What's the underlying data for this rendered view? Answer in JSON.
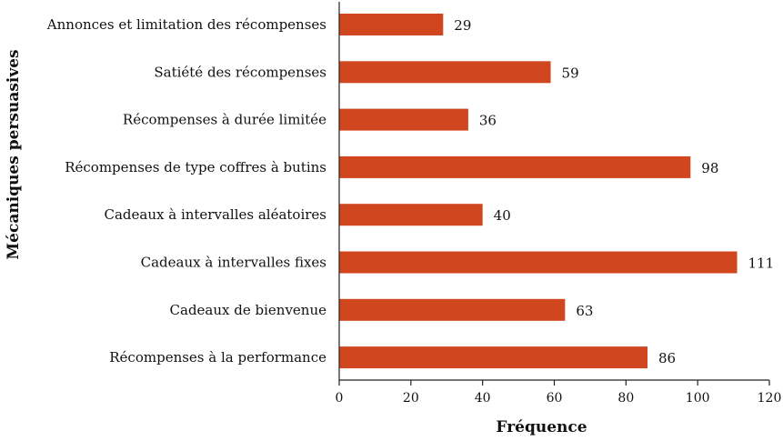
{
  "chart_data": {
    "type": "bar",
    "orientation": "horizontal",
    "title": "",
    "xlabel": "Fréquence",
    "ylabel": "Mécaniques persuasives",
    "xlim": [
      0,
      120
    ],
    "xticks": [
      0,
      20,
      40,
      60,
      80,
      100,
      120
    ],
    "grid": false,
    "bar_color": "#d0461f",
    "categories": [
      "Annonces et limitation des récompenses",
      "Satiété des récompenses",
      "Récompenses à durée limitée",
      "Récompenses de type coffres à butins",
      "Cadeaux à intervalles aléatoires",
      "Cadeaux à intervalles fixes",
      "Cadeaux de bienvenue",
      "Récompenses à la performance"
    ],
    "values": [
      29,
      59,
      36,
      98,
      40,
      111,
      63,
      86
    ]
  }
}
